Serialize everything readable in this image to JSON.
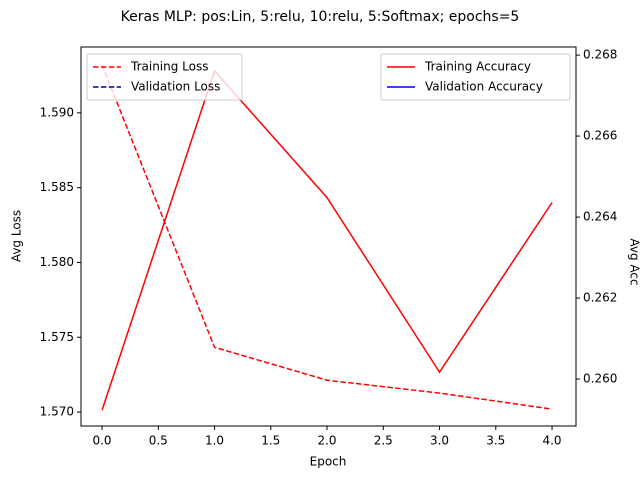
{
  "chart_data": {
    "type": "line",
    "title": "Keras MLP: pos:Lin, 5:relu, 10:relu, 5:Softmax; epochs=5",
    "xlabel": "Epoch",
    "ylabel": "Avg Loss",
    "y2label": "Avg Acc",
    "x": [
      0,
      1,
      2,
      3,
      4
    ],
    "xlim": [
      -0.187,
      4.213
    ],
    "xticks": [
      {
        "value": 0,
        "label": "0.0"
      },
      {
        "value": 0.5,
        "label": "0.5"
      },
      {
        "value": 1,
        "label": "1.0"
      },
      {
        "value": 1.5,
        "label": "1.5"
      },
      {
        "value": 2,
        "label": "2.0"
      },
      {
        "value": 2.5,
        "label": "2.5"
      },
      {
        "value": 3,
        "label": "3.0"
      },
      {
        "value": 3.5,
        "label": "3.5"
      },
      {
        "value": 4,
        "label": "4.0"
      }
    ],
    "ylim": [
      1.56907,
      1.5944
    ],
    "yticks": [
      {
        "value": 1.57,
        "label": "1.570"
      },
      {
        "value": 1.575,
        "label": "1.575"
      },
      {
        "value": 1.58,
        "label": "1.580"
      },
      {
        "value": 1.585,
        "label": "1.585"
      },
      {
        "value": 1.59,
        "label": "1.590"
      }
    ],
    "y2lim": [
      0.25884,
      0.2682
    ],
    "y2ticks": [
      {
        "value": 0.26,
        "label": "0.260"
      },
      {
        "value": 0.262,
        "label": "0.262"
      },
      {
        "value": 0.264,
        "label": "0.264"
      },
      {
        "value": 0.266,
        "label": "0.266"
      },
      {
        "value": 0.268,
        "label": "0.268"
      }
    ],
    "series": [
      {
        "name": "Training Loss",
        "color": "#ff0000",
        "linestyle": "dashed",
        "legend": "upper left",
        "values": [
          1.5932,
          1.57433,
          1.57213,
          1.57127,
          1.5702
        ]
      },
      {
        "name": "Validation Loss",
        "color": "#00008b",
        "linestyle": "dashed",
        "legend": "upper left",
        "values": [
          null,
          null,
          null,
          null,
          null
        ]
      },
      {
        "name": "Training Accuracy",
        "color": "#ff0000",
        "linestyle": "solid",
        "legend": "upper right",
        "axis": "y2",
        "values": [
          0.25923,
          0.26761,
          0.26448,
          0.26017,
          0.26436
        ]
      },
      {
        "name": "Validation Accuracy",
        "color": "#0000ff",
        "linestyle": "solid",
        "legend": "upper right",
        "axis": "y2",
        "values": [
          null,
          null,
          null,
          null,
          null
        ]
      }
    ]
  }
}
